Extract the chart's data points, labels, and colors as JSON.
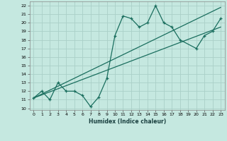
{
  "xlabel": "Humidex (Indice chaleur)",
  "bg_color": "#c5e8e0",
  "grid_color": "#aad0c8",
  "line_color": "#1a6e5e",
  "xlim": [
    -0.5,
    23.5
  ],
  "ylim": [
    9.8,
    22.5
  ],
  "xticks": [
    0,
    1,
    2,
    3,
    4,
    5,
    6,
    7,
    8,
    9,
    10,
    11,
    12,
    13,
    14,
    15,
    16,
    17,
    18,
    19,
    20,
    21,
    22,
    23
  ],
  "yticks": [
    10,
    11,
    12,
    13,
    14,
    15,
    16,
    17,
    18,
    19,
    20,
    21,
    22
  ],
  "data_x": [
    0,
    1,
    2,
    3,
    4,
    5,
    6,
    7,
    8,
    9,
    10,
    11,
    12,
    13,
    14,
    15,
    16,
    17,
    18,
    20,
    21,
    22,
    23
  ],
  "data_y": [
    11.2,
    12.0,
    11.0,
    13.0,
    12.0,
    12.0,
    11.5,
    10.2,
    11.3,
    13.5,
    18.5,
    20.8,
    20.5,
    19.5,
    20.0,
    22.0,
    20.0,
    19.5,
    18.0,
    17.0,
    18.5,
    19.0,
    20.5
  ],
  "line1_x": [
    0,
    23
  ],
  "line1_y": [
    11.2,
    19.5
  ],
  "line2_x": [
    0,
    23
  ],
  "line2_y": [
    11.2,
    21.8
  ],
  "tick_fontsize": 4.5,
  "xlabel_fontsize": 5.5
}
